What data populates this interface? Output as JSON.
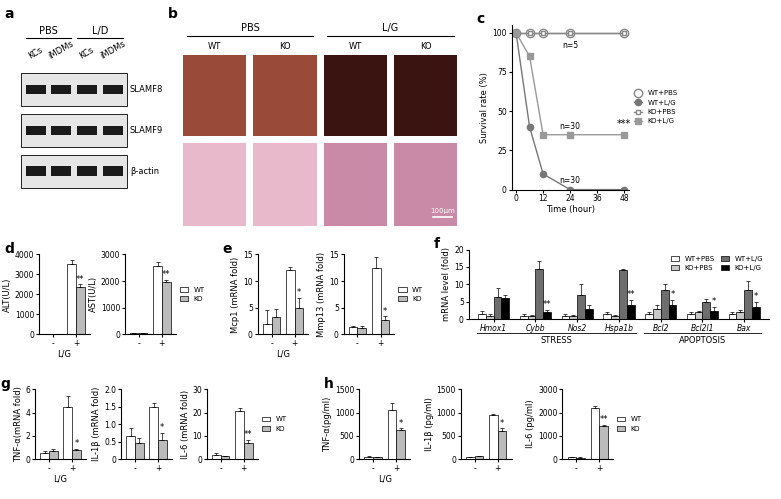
{
  "blot": {
    "panel": "a",
    "groups": [
      {
        "label": "PBS",
        "lanes": [
          "KCs",
          "iMDMs"
        ]
      },
      {
        "label": "L/D",
        "lanes": [
          "KCs",
          "iMDMs"
        ]
      }
    ],
    "rows": [
      "SLAMF8",
      "SLAMF9",
      "β-actin"
    ]
  },
  "images": {
    "panel": "b",
    "groups": [
      {
        "label": "PBS",
        "columns": [
          "WT",
          "KO"
        ]
      },
      {
        "label": "L/G",
        "columns": [
          "WT",
          "KO"
        ]
      }
    ],
    "scale_bar": "100μm"
  },
  "chart_data": [
    {
      "panel": "c",
      "type": "line",
      "xlabel": "Time (hour)",
      "ylabel": "Survival rate (%)",
      "xlim": [
        -2,
        50
      ],
      "xticks": [
        0,
        12,
        24,
        36,
        48
      ],
      "ylim": [
        0,
        105
      ],
      "yticks": [
        0,
        25,
        50,
        75,
        100
      ],
      "legend": "center left",
      "series": [
        {
          "name": "WT+PBS",
          "color": "#888888",
          "marker": "open_circle",
          "x": [
            0,
            6,
            12,
            24,
            48
          ],
          "values": [
            100,
            100,
            100,
            100,
            100
          ],
          "note": "n=5"
        },
        {
          "name": "WT+L/G",
          "color": "#777777",
          "marker": "circle",
          "x": [
            0,
            6,
            12,
            24,
            48
          ],
          "values": [
            100,
            40,
            10,
            0,
            0
          ],
          "note": "n=30"
        },
        {
          "name": "KO+PBS",
          "color": "#888888",
          "marker": "open_square",
          "x": [
            0,
            6,
            12,
            24,
            48
          ],
          "values": [
            100,
            100,
            100,
            100,
            100
          ]
        },
        {
          "name": "KO+L/G",
          "color": "#999999",
          "marker": "square",
          "x": [
            0,
            6,
            12,
            24,
            48
          ],
          "values": [
            100,
            85,
            35,
            35,
            35
          ],
          "note": "n=30",
          "significance": "***"
        }
      ]
    },
    {
      "panel": "d",
      "type": "bar",
      "ylabel": "ALT(U/L)",
      "xlabel": "L/G",
      "categories": [
        "-",
        "+"
      ],
      "ylim": [
        0,
        4000
      ],
      "yticks": [
        0,
        1000,
        2000,
        3000,
        4000
      ],
      "series": [
        {
          "color": "#ffffff",
          "values": [
            15,
            3500
          ],
          "errors": [
            5,
            200
          ]
        },
        {
          "color": "#bbbbbb",
          "values": [
            9,
            2350
          ],
          "errors": [
            4,
            150
          ],
          "significance": [
            null,
            "**"
          ]
        }
      ]
    },
    {
      "type": "bar",
      "ylabel": "AST(U/L)",
      "categories": [
        "-",
        "+"
      ],
      "ylim": [
        0,
        3000
      ],
      "yticks": [
        0,
        1000,
        2000,
        3000
      ],
      "legend": "center left",
      "series": [
        {
          "name": "WT",
          "color": "#ffffff",
          "values": [
            35,
            2550
          ],
          "errors": [
            15,
            150
          ]
        },
        {
          "name": "KO",
          "color": "#bbbbbb",
          "values": [
            40,
            1950
          ],
          "errors": [
            15,
            100
          ],
          "significance": [
            null,
            "**"
          ]
        }
      ]
    },
    {
      "panel": "e",
      "type": "bar",
      "ylabel": "Mcp1 (mRNA fold)",
      "xlabel": "L/G",
      "categories": [
        "-",
        "+"
      ],
      "ylim": [
        0,
        15
      ],
      "yticks": [
        0,
        5,
        10,
        15
      ],
      "series": [
        {
          "color": "#ffffff",
          "values": [
            2,
            12
          ],
          "errors": [
            2.5,
            0.6
          ]
        },
        {
          "color": "#bbbbbb",
          "values": [
            3.2,
            5
          ],
          "errors": [
            1.5,
            1.8
          ],
          "significance": [
            null,
            "*"
          ]
        }
      ]
    },
    {
      "type": "bar",
      "ylabel": "Mmp13 (mRNA fold)",
      "categories": [
        "-",
        "+"
      ],
      "ylim": [
        0,
        15
      ],
      "yticks": [
        0,
        5,
        10,
        15
      ],
      "legend": "center left",
      "series": [
        {
          "name": "WT",
          "color": "#ffffff",
          "values": [
            1.3,
            12.5
          ],
          "errors": [
            0.3,
            2
          ]
        },
        {
          "name": "KO",
          "color": "#bbbbbb",
          "values": [
            1.2,
            2.6
          ],
          "errors": [
            0.3,
            0.8
          ],
          "significance": [
            null,
            "*"
          ]
        }
      ]
    },
    {
      "panel": "f",
      "type": "bar",
      "ylabel": "mRNA level (fold)",
      "categories": [
        "Hmox1",
        "Cybb",
        "Nos2",
        "Hspa1b",
        "Bcl2",
        "Bcl2l1",
        "Bax"
      ],
      "groups": [
        {
          "label": "STRESS",
          "categories": [
            "Hmox1",
            "Cybb",
            "Nos2",
            "Hspa1b"
          ]
        },
        {
          "label": "APOPTOSIS",
          "categories": [
            "Bcl2",
            "Bcl2l1",
            "Bax"
          ]
        }
      ],
      "ylim": [
        0,
        20
      ],
      "yticks": [
        0,
        5,
        10,
        15,
        20
      ],
      "legend": "upper right",
      "series": [
        {
          "name": "WT+PBS",
          "color": "#ffffff",
          "values": [
            1.5,
            1,
            1,
            1.5,
            1.5,
            1.5,
            1.5
          ],
          "errors": [
            0.8,
            0.5,
            0.5,
            0.5,
            0.5,
            0.5,
            0.5
          ]
        },
        {
          "name": "KO+PBS",
          "color": "#c8c8c8",
          "values": [
            1,
            1,
            1,
            1,
            3,
            2,
            2
          ],
          "errors": [
            0.5,
            0.3,
            0.3,
            0.3,
            1,
            0.5,
            0.8
          ]
        },
        {
          "name": "WT+L/G",
          "color": "#6e6e6e",
          "values": [
            6.5,
            14.5,
            7,
            14,
            8.5,
            5,
            8.5
          ],
          "errors": [
            2.5,
            2.2,
            3,
            0.5,
            1.5,
            0.7,
            2.5
          ]
        },
        {
          "name": "KO+L/G",
          "color": "#000000",
          "values": [
            6,
            2,
            3,
            4,
            4,
            2.5,
            3.5
          ],
          "errors": [
            1,
            0.8,
            1.2,
            1.5,
            1.5,
            1,
            1.5
          ],
          "significance": [
            null,
            "**",
            null,
            "**",
            "*",
            "*",
            "*"
          ]
        }
      ]
    },
    {
      "panel": "g",
      "type": "bar",
      "ylabel": "TNF-α(mRNA fold)",
      "xlabel": "L/G",
      "categories": [
        "-",
        "+"
      ],
      "ylim": [
        0,
        6
      ],
      "yticks": [
        0,
        2,
        4,
        6
      ],
      "series": [
        {
          "color": "#ffffff",
          "values": [
            0.5,
            4.5
          ],
          "errors": [
            0.2,
            0.9
          ]
        },
        {
          "color": "#bbbbbb",
          "values": [
            0.7,
            0.8
          ],
          "errors": [
            0.2,
            0.1
          ],
          "significance": [
            null,
            "*"
          ]
        }
      ]
    },
    {
      "type": "bar",
      "ylabel": "IL-1β (mRNA fold)",
      "categories": [
        "-",
        "+"
      ],
      "ylim": [
        0,
        2
      ],
      "yticks": [
        0,
        0.5,
        {
          "value": 1,
          "label": "1.0"
        },
        1.5,
        {
          "value": 2,
          "label": "2.0"
        }
      ],
      "series": [
        {
          "color": "#ffffff",
          "values": [
            0.65,
            1.5
          ],
          "errors": [
            0.25,
            0.1
          ]
        },
        {
          "color": "#bbbbbb",
          "values": [
            0.45,
            0.55
          ],
          "errors": [
            0.15,
            0.2
          ],
          "significance": [
            null,
            "*"
          ]
        }
      ]
    },
    {
      "type": "bar",
      "ylabel": "IL-6 (mRNA fold)",
      "categories": [
        "-",
        "+"
      ],
      "ylim": [
        0,
        30
      ],
      "yticks": [
        0,
        10,
        20,
        30
      ],
      "legend": "center left",
      "series": [
        {
          "name": "WT",
          "color": "#ffffff",
          "values": [
            1.8,
            20.5
          ],
          "errors": [
            0.8,
            1.5
          ]
        },
        {
          "name": "KO",
          "color": "#bbbbbb",
          "values": [
            1.2,
            7
          ],
          "errors": [
            0.3,
            1.2
          ],
          "significance": [
            null,
            "**"
          ]
        }
      ]
    },
    {
      "panel": "h",
      "type": "bar",
      "ylabel": "TNF-α(pg/ml)",
      "xlabel": "L/G",
      "categories": [
        "-",
        "+"
      ],
      "ylim": [
        0,
        1500
      ],
      "yticks": [
        0,
        500,
        1000,
        1500
      ],
      "series": [
        {
          "color": "#ffffff",
          "values": [
            55,
            1050
          ],
          "errors": [
            5,
            150
          ]
        },
        {
          "color": "#bbbbbb",
          "values": [
            50,
            620
          ],
          "errors": [
            3,
            40
          ],
          "significance": [
            null,
            "*"
          ]
        }
      ]
    },
    {
      "type": "bar",
      "ylabel": "IL-1β (pg/ml)",
      "categories": [
        "-",
        "+"
      ],
      "ylim": [
        0,
        1500
      ],
      "yticks": [
        0,
        500,
        1000,
        1500
      ],
      "series": [
        {
          "color": "#ffffff",
          "values": [
            45,
            950
          ],
          "errors": [
            8,
            20
          ]
        },
        {
          "color": "#bbbbbb",
          "values": [
            60,
            600
          ],
          "errors": [
            15,
            60
          ],
          "significance": [
            null,
            "*"
          ]
        }
      ]
    },
    {
      "type": "bar",
      "ylabel": "IL-6 (pg/ml)",
      "categories": [
        "-",
        "+"
      ],
      "ylim": [
        0,
        3000
      ],
      "yticks": [
        0,
        1000,
        2000,
        3000
      ],
      "legend": "center left",
      "series": [
        {
          "name": "WT",
          "color": "#ffffff",
          "values": [
            70,
            2200
          ],
          "errors": [
            15,
            80
          ]
        },
        {
          "name": "KO",
          "color": "#bbbbbb",
          "values": [
            55,
            1400
          ],
          "errors": [
            20,
            60
          ],
          "significance": [
            null,
            "**"
          ]
        }
      ]
    }
  ]
}
